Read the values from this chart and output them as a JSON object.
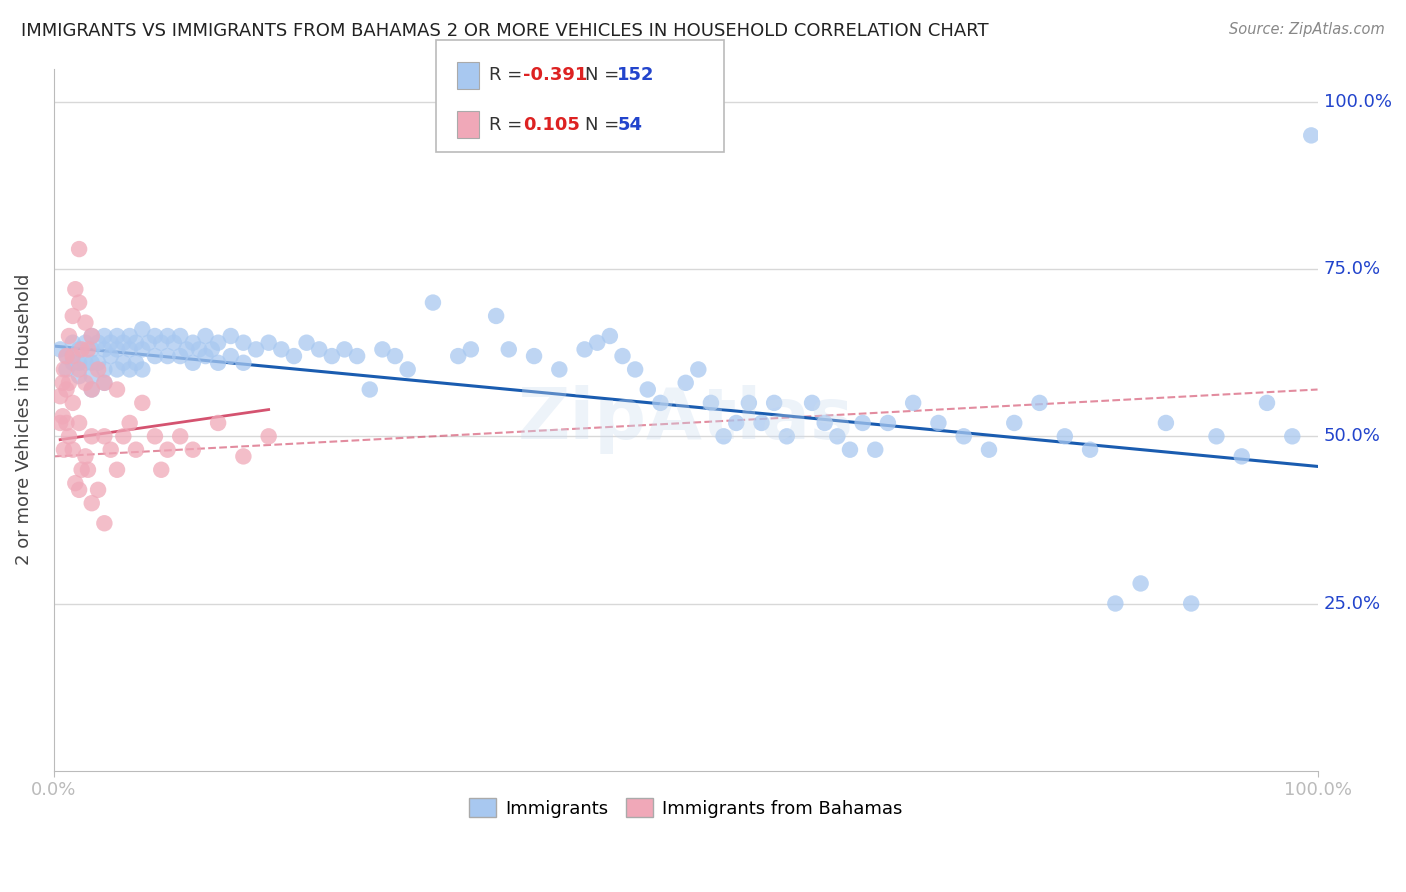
{
  "title": "IMMIGRANTS VS IMMIGRANTS FROM BAHAMAS 2 OR MORE VEHICLES IN HOUSEHOLD CORRELATION CHART",
  "source": "Source: ZipAtlas.com",
  "ylabel": "2 or more Vehicles in Household",
  "ytick_labels": [
    "25.0%",
    "50.0%",
    "75.0%",
    "100.0%"
  ],
  "ytick_positions": [
    0.25,
    0.5,
    0.75,
    1.0
  ],
  "legend_blue_R": "-0.391",
  "legend_blue_N": "152",
  "legend_pink_R": "0.105",
  "legend_pink_N": "54",
  "blue_color": "#a8c8f0",
  "blue_line_color": "#1a5cb0",
  "pink_color": "#f0a8b8",
  "pink_line_color": "#d04060",
  "background_color": "#ffffff",
  "grid_color": "#d8d8d8",
  "title_color": "#222222",
  "R_color": "#dd2222",
  "N_color": "#2244cc",
  "blue_x": [
    0.005,
    0.01,
    0.01,
    0.015,
    0.015,
    0.02,
    0.02,
    0.02,
    0.025,
    0.025,
    0.03,
    0.03,
    0.03,
    0.03,
    0.03,
    0.035,
    0.035,
    0.04,
    0.04,
    0.04,
    0.04,
    0.045,
    0.045,
    0.05,
    0.05,
    0.05,
    0.055,
    0.055,
    0.06,
    0.06,
    0.06,
    0.065,
    0.065,
    0.07,
    0.07,
    0.07,
    0.075,
    0.08,
    0.08,
    0.085,
    0.09,
    0.09,
    0.095,
    0.1,
    0.1,
    0.105,
    0.11,
    0.11,
    0.115,
    0.12,
    0.12,
    0.125,
    0.13,
    0.13,
    0.14,
    0.14,
    0.15,
    0.15,
    0.16,
    0.17,
    0.18,
    0.19,
    0.2,
    0.21,
    0.22,
    0.23,
    0.24,
    0.25,
    0.26,
    0.27,
    0.28,
    0.3,
    0.32,
    0.33,
    0.35,
    0.36,
    0.38,
    0.4,
    0.42,
    0.43,
    0.44,
    0.45,
    0.46,
    0.47,
    0.48,
    0.5,
    0.51,
    0.52,
    0.53,
    0.54,
    0.55,
    0.56,
    0.57,
    0.58,
    0.6,
    0.61,
    0.62,
    0.63,
    0.64,
    0.65,
    0.66,
    0.68,
    0.7,
    0.72,
    0.74,
    0.76,
    0.78,
    0.8,
    0.82,
    0.84,
    0.86,
    0.88,
    0.9,
    0.92,
    0.94,
    0.96,
    0.98,
    0.995
  ],
  "blue_y": [
    0.63,
    0.62,
    0.6,
    0.64,
    0.61,
    0.63,
    0.61,
    0.59,
    0.64,
    0.61,
    0.65,
    0.63,
    0.61,
    0.59,
    0.57,
    0.64,
    0.61,
    0.65,
    0.63,
    0.6,
    0.58,
    0.64,
    0.62,
    0.65,
    0.63,
    0.6,
    0.64,
    0.61,
    0.65,
    0.63,
    0.6,
    0.64,
    0.61,
    0.66,
    0.63,
    0.6,
    0.64,
    0.65,
    0.62,
    0.64,
    0.65,
    0.62,
    0.64,
    0.65,
    0.62,
    0.63,
    0.64,
    0.61,
    0.63,
    0.65,
    0.62,
    0.63,
    0.64,
    0.61,
    0.65,
    0.62,
    0.64,
    0.61,
    0.63,
    0.64,
    0.63,
    0.62,
    0.64,
    0.63,
    0.62,
    0.63,
    0.62,
    0.57,
    0.63,
    0.62,
    0.6,
    0.7,
    0.62,
    0.63,
    0.68,
    0.63,
    0.62,
    0.6,
    0.63,
    0.64,
    0.65,
    0.62,
    0.6,
    0.57,
    0.55,
    0.58,
    0.6,
    0.55,
    0.5,
    0.52,
    0.55,
    0.52,
    0.55,
    0.5,
    0.55,
    0.52,
    0.5,
    0.48,
    0.52,
    0.48,
    0.52,
    0.55,
    0.52,
    0.5,
    0.48,
    0.52,
    0.55,
    0.5,
    0.48,
    0.25,
    0.28,
    0.52,
    0.25,
    0.5,
    0.47,
    0.55,
    0.5,
    0.95
  ],
  "pink_x": [
    0.005,
    0.005,
    0.007,
    0.007,
    0.008,
    0.008,
    0.01,
    0.01,
    0.01,
    0.012,
    0.012,
    0.012,
    0.015,
    0.015,
    0.015,
    0.015,
    0.017,
    0.017,
    0.02,
    0.02,
    0.02,
    0.02,
    0.02,
    0.022,
    0.022,
    0.025,
    0.025,
    0.025,
    0.027,
    0.027,
    0.03,
    0.03,
    0.03,
    0.03,
    0.035,
    0.035,
    0.04,
    0.04,
    0.04,
    0.045,
    0.05,
    0.05,
    0.055,
    0.06,
    0.065,
    0.07,
    0.08,
    0.085,
    0.09,
    0.1,
    0.11,
    0.13,
    0.15,
    0.17
  ],
  "pink_y": [
    0.56,
    0.52,
    0.58,
    0.53,
    0.6,
    0.48,
    0.62,
    0.57,
    0.52,
    0.65,
    0.58,
    0.5,
    0.68,
    0.62,
    0.55,
    0.48,
    0.72,
    0.43,
    0.78,
    0.7,
    0.6,
    0.52,
    0.42,
    0.63,
    0.45,
    0.67,
    0.58,
    0.47,
    0.63,
    0.45,
    0.65,
    0.57,
    0.5,
    0.4,
    0.6,
    0.42,
    0.58,
    0.5,
    0.37,
    0.48,
    0.57,
    0.45,
    0.5,
    0.52,
    0.48,
    0.55,
    0.5,
    0.45,
    0.48,
    0.5,
    0.48,
    0.52,
    0.47,
    0.5
  ],
  "blue_trend": [
    0.0,
    1.0,
    0.635,
    0.455
  ],
  "pink_trend": [
    0.0,
    1.0,
    0.47,
    0.57
  ],
  "xlim": [
    0.0,
    1.0
  ],
  "ylim": [
    0.0,
    1.05
  ],
  "figsize": [
    14.06,
    8.92
  ],
  "dpi": 100
}
